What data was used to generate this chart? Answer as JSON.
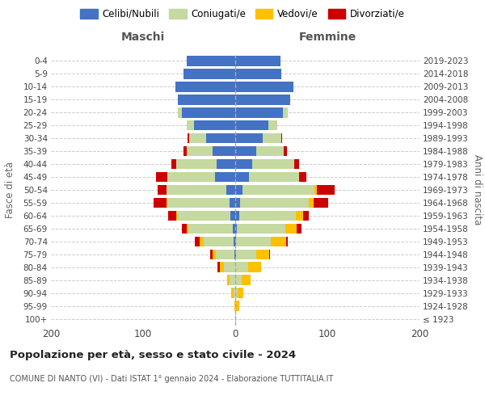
{
  "age_groups": [
    "100+",
    "95-99",
    "90-94",
    "85-89",
    "80-84",
    "75-79",
    "70-74",
    "65-69",
    "60-64",
    "55-59",
    "50-54",
    "45-49",
    "40-44",
    "35-39",
    "30-34",
    "25-29",
    "20-24",
    "15-19",
    "10-14",
    "5-9",
    "0-4"
  ],
  "birth_years": [
    "≤ 1923",
    "1924-1928",
    "1929-1933",
    "1934-1938",
    "1939-1943",
    "1944-1948",
    "1949-1953",
    "1954-1958",
    "1959-1963",
    "1964-1968",
    "1969-1973",
    "1974-1978",
    "1979-1983",
    "1984-1988",
    "1989-1993",
    "1994-1998",
    "1999-2003",
    "2004-2008",
    "2009-2013",
    "2014-2018",
    "2019-2023"
  ],
  "colors": {
    "celibi": "#4472c4",
    "coniugati": "#c5d9a0",
    "vedovi": "#ffc000",
    "divorziati": "#cc0000"
  },
  "males": {
    "celibi": [
      0,
      0,
      0,
      0,
      0,
      1,
      2,
      3,
      5,
      6,
      10,
      22,
      20,
      25,
      32,
      45,
      58,
      62,
      65,
      56,
      53
    ],
    "coniugati": [
      0,
      0,
      2,
      6,
      12,
      20,
      32,
      48,
      58,
      68,
      65,
      52,
      44,
      28,
      18,
      8,
      4,
      0,
      0,
      0,
      0
    ],
    "vedovi": [
      0,
      1,
      2,
      3,
      5,
      4,
      5,
      2,
      1,
      1,
      0,
      0,
      0,
      0,
      0,
      0,
      0,
      0,
      0,
      0,
      0
    ],
    "divorziati": [
      0,
      0,
      0,
      0,
      2,
      2,
      5,
      5,
      9,
      14,
      9,
      12,
      5,
      3,
      2,
      0,
      0,
      0,
      0,
      0,
      0
    ]
  },
  "females": {
    "celibi": [
      0,
      0,
      0,
      0,
      0,
      1,
      1,
      2,
      4,
      5,
      8,
      15,
      18,
      23,
      30,
      36,
      52,
      60,
      63,
      50,
      49
    ],
    "coniugati": [
      0,
      1,
      3,
      7,
      14,
      22,
      38,
      52,
      62,
      75,
      78,
      54,
      46,
      30,
      20,
      10,
      5,
      0,
      0,
      0,
      0
    ],
    "vedovi": [
      1,
      3,
      6,
      10,
      14,
      14,
      16,
      13,
      8,
      5,
      3,
      0,
      0,
      0,
      0,
      0,
      0,
      0,
      0,
      0,
      0
    ],
    "divorziati": [
      0,
      0,
      0,
      0,
      0,
      1,
      2,
      5,
      6,
      16,
      19,
      8,
      5,
      3,
      1,
      0,
      0,
      0,
      0,
      0,
      0
    ]
  },
  "title1": "Popolazione per età, sesso e stato civile - 2024",
  "title2": "COMUNE DI NANTO (VI) - Dati ISTAT 1° gennaio 2024 - Elaborazione TUTTITALIA.IT",
  "xlabel_left": "Maschi",
  "xlabel_right": "Femmine",
  "ylabel_left": "Fasce di età",
  "ylabel_right": "Anni di nascita",
  "xlim": 200,
  "bg_color": "#ffffff",
  "grid_color": "#cccccc",
  "legend_labels": [
    "Celibi/Nubili",
    "Coniugati/e",
    "Vedovi/e",
    "Divorziati/e"
  ]
}
